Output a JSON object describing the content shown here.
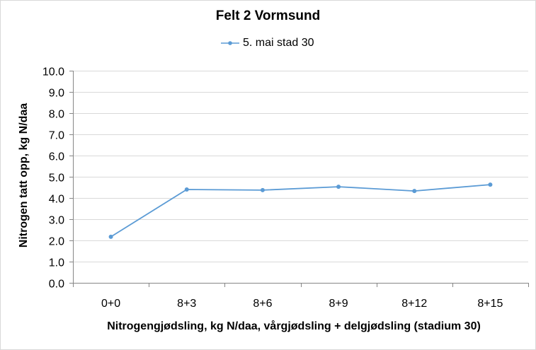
{
  "chart_data": {
    "type": "line",
    "title": "Felt 2 Vormsund",
    "xlabel": "Nitrogengjødsling, kg N/daa, vårgjødsling + delgjødsling (stadium 30)",
    "ylabel": "Nitrogen tatt opp, kg N/daa",
    "categories": [
      "0+0",
      "8+3",
      "8+6",
      "8+9",
      "8+12",
      "8+15"
    ],
    "series": [
      {
        "name": "5. mai stad 30",
        "color": "#5b9bd5",
        "values": [
          2.17,
          4.4,
          4.37,
          4.53,
          4.33,
          4.63
        ]
      }
    ],
    "ylim": [
      0,
      10
    ],
    "ytick_step": 1,
    "yticks": [
      "0.0",
      "1.0",
      "2.0",
      "3.0",
      "4.0",
      "5.0",
      "6.0",
      "7.0",
      "8.0",
      "9.0",
      "10.0"
    ],
    "grid": true,
    "legend_position": "top"
  },
  "colors": {
    "series": "#5b9bd5",
    "grid": "#d9d9d9",
    "axis": "#868686",
    "border": "#d9d9d9"
  }
}
